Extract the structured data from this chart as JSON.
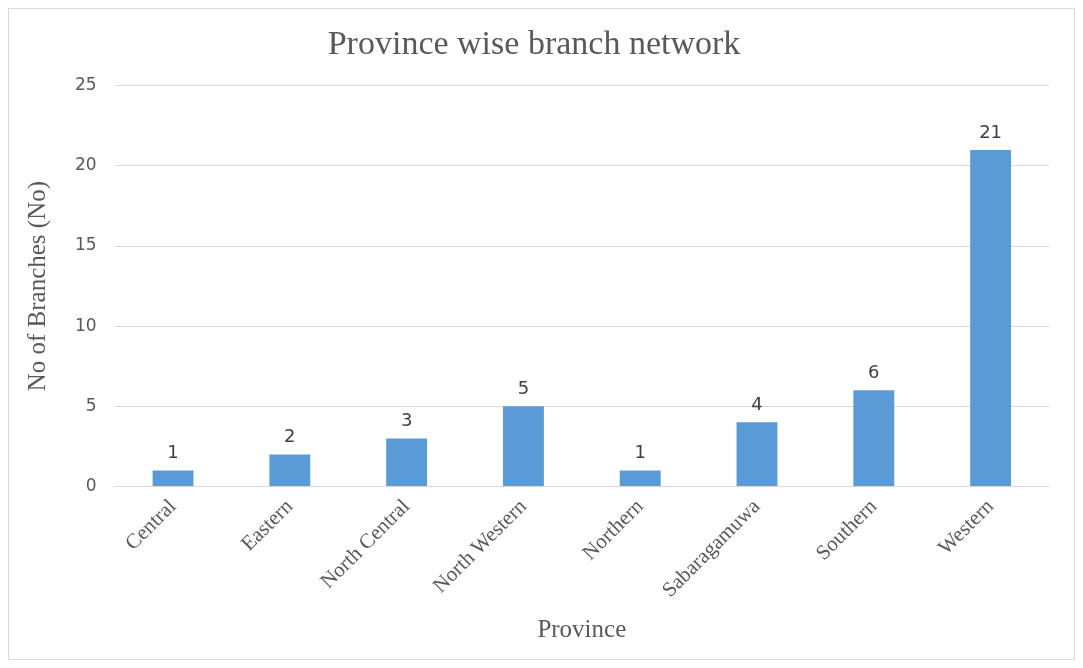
{
  "chart_data": {
    "type": "bar",
    "title": "Province wise branch network",
    "xlabel": "Province",
    "ylabel": "No of Branches (No)",
    "categories": [
      "Central",
      "Eastern",
      "North Central",
      "North Western",
      "Northern",
      "Sabaragamuwa",
      "Southern",
      "Western"
    ],
    "values": [
      1,
      2,
      3,
      5,
      1,
      4,
      6,
      21
    ],
    "color": "#5b9bd5",
    "ylim": [
      0,
      25
    ],
    "yticks": [
      0,
      5,
      10,
      15,
      20,
      25
    ],
    "grid": "y",
    "legend": false,
    "data_labels": true
  }
}
